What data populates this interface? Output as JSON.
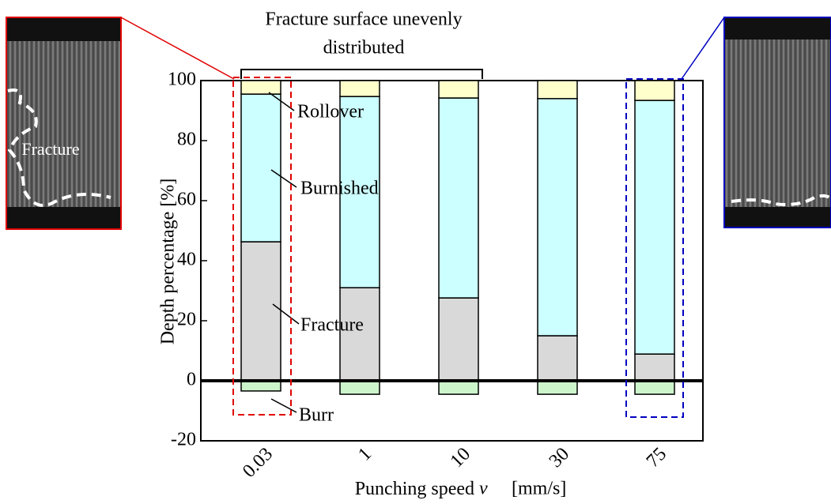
{
  "chart_data": {
    "type": "bar",
    "stacked": true,
    "annotation": [
      "Fracture surface unevenly",
      "distributed"
    ],
    "image_label": "Fracture",
    "x_label": {
      "text": "Punching speed",
      "variable": "v",
      "unit": "[mm/s]"
    },
    "y_label": "Depth percentage [%]",
    "categories": [
      "0.03",
      "1",
      "10",
      "30",
      "75"
    ],
    "series": [
      {
        "name": "Fracture",
        "color": "#d9d9d9",
        "values": [
          46.3,
          31,
          27.6,
          15,
          8.9
        ]
      },
      {
        "name": "Burnished",
        "color": "#ccffff",
        "values": [
          49.2,
          63.7,
          66.6,
          79,
          84.5
        ]
      },
      {
        "name": "Rollover",
        "color": "#ffffcc",
        "values": [
          4.5,
          5.3,
          5.8,
          6,
          6.6
        ]
      },
      {
        "name": "Burr",
        "color": "#ccf5cc",
        "values": [
          -3.4,
          -4.5,
          -4.5,
          -4.5,
          -4.5
        ]
      }
    ],
    "ylim": [
      -20,
      100
    ],
    "yticks": [
      -20,
      0,
      20,
      40,
      60,
      80,
      100
    ],
    "grid": false
  }
}
